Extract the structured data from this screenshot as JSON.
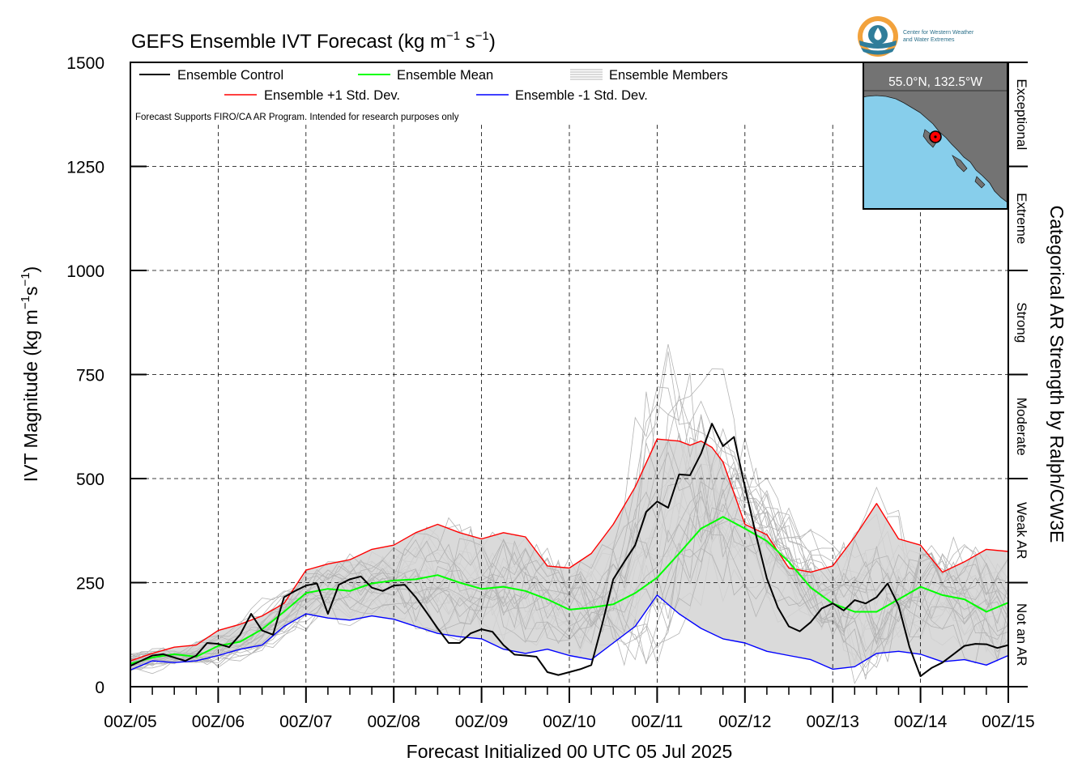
{
  "header": {
    "title_main": "GEFS Ensemble IVT Forecast (kg m",
    "title_exp1": "−1",
    "title_mid": " s",
    "title_exp2": "−1",
    "title_end": ")"
  },
  "logo": {
    "line1": "Center for Western Weather",
    "line2": "and Water Extremes",
    "icon": "cw3e-logo-icon"
  },
  "inset_map": {
    "label": "55.0°N, 132.5°W",
    "land_color": "#737373",
    "water_color": "#87ceeb",
    "marker_color": "#ff0000"
  },
  "notes": {
    "disclaimer": "Forecast Supports FIRO/CA AR Program. Intended for research purposes only"
  },
  "chart_data": {
    "type": "line",
    "title": "GEFS Ensemble IVT Forecast (kg m-1 s-1)",
    "ylabel": "IVT Magnitude (kg m-1s-1)",
    "ylabel_main": "IVT Magnitude (kg m",
    "ylabel_exp1": "−1",
    "ylabel_mid": "s",
    "ylabel_exp2": "−1",
    "ylabel_end": ")",
    "xlabel": "Forecast Initialized 00 UTC 05 Jul 2025",
    "right_label": "Categorical AR Strength by Ralph/CW3E",
    "ylim": [
      0,
      1500
    ],
    "xlim": [
      0,
      240
    ],
    "x_unit": "hours since 00Z/05",
    "yticks": [
      0,
      250,
      500,
      750,
      1000,
      1250,
      1500
    ],
    "xtick_labels": [
      "00Z/05",
      "00Z/06",
      "00Z/07",
      "00Z/08",
      "00Z/09",
      "00Z/10",
      "00Z/11",
      "00Z/12",
      "00Z/13",
      "00Z/14",
      "00Z/15"
    ],
    "categories": [
      {
        "label": "Not an AR",
        "from": 0,
        "to": 250
      },
      {
        "label": "Weak AR",
        "from": 250,
        "to": 500
      },
      {
        "label": "Moderate",
        "from": 500,
        "to": 750
      },
      {
        "label": "Strong",
        "from": 750,
        "to": 1000
      },
      {
        "label": "Extreme",
        "from": 1000,
        "to": 1250
      },
      {
        "label": "Exceptional",
        "from": 1250,
        "to": 1500
      }
    ],
    "grid": true,
    "legend_position": "top-left",
    "legend": [
      {
        "name": "Ensemble Control",
        "color": "#000000"
      },
      {
        "name": "Ensemble Mean",
        "color": "#00ff00"
      },
      {
        "name": "Ensemble Members",
        "color": "#b4b4b4"
      },
      {
        "name": "Ensemble +1 Std. Dev.",
        "color": "#ff0000"
      },
      {
        "name": "Ensemble -1 Std. Dev.",
        "color": "#0000ff"
      }
    ],
    "shading_color": "#d3d3d3",
    "series": [
      {
        "name": "Ensemble Control",
        "color": "#000000",
        "width": 2,
        "x": [
          0,
          6,
          9,
          12,
          15,
          18,
          21,
          24,
          27,
          30,
          33,
          36,
          39,
          42,
          45,
          48,
          51,
          54,
          57,
          60,
          63,
          66,
          69,
          72,
          75,
          78,
          81,
          84,
          87,
          90,
          93,
          96,
          99,
          102,
          105,
          108,
          111,
          114,
          117,
          120,
          123,
          126,
          129,
          132,
          135,
          138,
          141,
          144,
          147,
          150,
          153,
          156,
          159,
          162,
          165,
          168,
          171,
          174,
          177,
          180,
          183,
          186,
          189,
          192,
          195,
          198,
          201,
          204,
          207,
          210,
          213,
          216,
          219,
          222,
          225,
          228,
          231,
          234,
          237,
          240
        ],
        "y": [
          50,
          75,
          78,
          70,
          62,
          75,
          105,
          103,
          95,
          125,
          175,
          135,
          125,
          215,
          230,
          243,
          248,
          175,
          245,
          258,
          265,
          238,
          230,
          243,
          245,
          215,
          178,
          140,
          105,
          105,
          128,
          138,
          132,
          100,
          77,
          75,
          72,
          35,
          28,
          35,
          42,
          52,
          150,
          258,
          300,
          340,
          420,
          445,
          430,
          510,
          508,
          560,
          632,
          578,
          600,
          480,
          365,
          260,
          190,
          145,
          133,
          155,
          188,
          200,
          183,
          208,
          200,
          215,
          248,
          195,
          95,
          25,
          45,
          58,
          78,
          98,
          103,
          102,
          93,
          100
        ]
      },
      {
        "name": "Ensemble Mean",
        "color": "#00ff00",
        "width": 2,
        "x": [
          0,
          6,
          12,
          18,
          24,
          30,
          36,
          42,
          48,
          54,
          60,
          66,
          72,
          78,
          84,
          90,
          96,
          102,
          108,
          114,
          120,
          126,
          132,
          138,
          144,
          150,
          156,
          162,
          168,
          174,
          180,
          186,
          192,
          198,
          204,
          210,
          216,
          222,
          228,
          234,
          240
        ],
        "y": [
          55,
          70,
          78,
          72,
          98,
          108,
          138,
          180,
          225,
          235,
          230,
          248,
          255,
          258,
          268,
          250,
          235,
          240,
          230,
          210,
          185,
          190,
          198,
          225,
          262,
          320,
          380,
          408,
          380,
          350,
          300,
          238,
          200,
          180,
          180,
          210,
          240,
          220,
          210,
          180,
          202
        ]
      },
      {
        "name": "Ensemble +1 Std. Dev.",
        "color": "#ff0000",
        "width": 1.4,
        "x": [
          0,
          6,
          12,
          18,
          24,
          30,
          36,
          42,
          48,
          54,
          60,
          66,
          72,
          78,
          84,
          90,
          96,
          102,
          108,
          114,
          120,
          126,
          132,
          138,
          144,
          150,
          153,
          156,
          159,
          162,
          168,
          174,
          180,
          186,
          192,
          198,
          204,
          210,
          216,
          222,
          228,
          234,
          240
        ],
        "y": [
          62,
          80,
          95,
          100,
          135,
          150,
          170,
          200,
          280,
          295,
          305,
          330,
          340,
          370,
          390,
          370,
          355,
          370,
          360,
          290,
          285,
          320,
          390,
          480,
          595,
          590,
          580,
          590,
          575,
          540,
          390,
          365,
          285,
          275,
          290,
          360,
          440,
          355,
          340,
          275,
          300,
          330,
          325
        ]
      },
      {
        "name": "Ensemble -1 Std. Dev.",
        "color": "#0000ff",
        "width": 1.4,
        "x": [
          0,
          6,
          12,
          18,
          24,
          30,
          36,
          42,
          48,
          54,
          60,
          66,
          72,
          78,
          84,
          90,
          96,
          102,
          108,
          114,
          120,
          126,
          132,
          138,
          144,
          150,
          156,
          162,
          168,
          174,
          180,
          186,
          192,
          198,
          204,
          210,
          216,
          222,
          228,
          234,
          240
        ],
        "y": [
          40,
          62,
          58,
          62,
          75,
          90,
          100,
          145,
          175,
          165,
          160,
          170,
          162,
          145,
          128,
          120,
          115,
          90,
          80,
          90,
          75,
          65,
          105,
          145,
          220,
          175,
          140,
          115,
          105,
          85,
          75,
          65,
          42,
          48,
          80,
          85,
          78,
          60,
          65,
          52,
          75
        ]
      }
    ]
  }
}
